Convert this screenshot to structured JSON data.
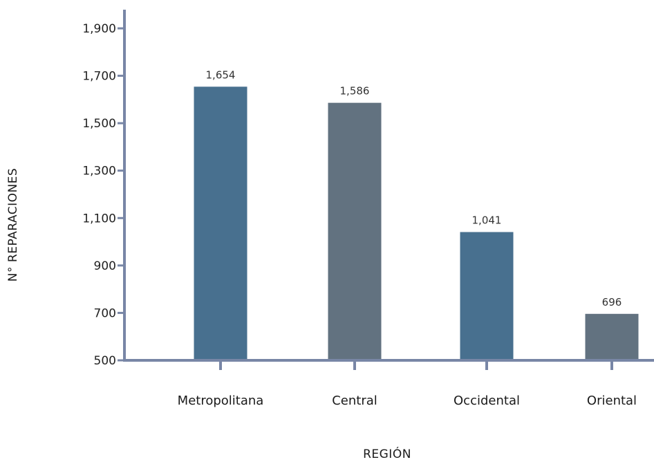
{
  "chart_data": {
    "type": "bar",
    "categories": [
      "Metropolitana",
      "Central",
      "Occidental",
      "Oriental"
    ],
    "values": [
      1654,
      1586,
      1041,
      696
    ],
    "data_labels": [
      "1,654",
      "1,586",
      "1,041",
      "696"
    ],
    "xlabel": "REGIÓN",
    "ylabel": "N° REPARACIONES",
    "ylim": [
      500,
      1900
    ],
    "yticks": [
      500,
      700,
      900,
      1100,
      1300,
      1500,
      1700,
      1900
    ],
    "ytick_labels": [
      "500",
      "700",
      "900",
      "1,100",
      "1,300",
      "1,500",
      "1,700",
      "1,900"
    ],
    "grid": false,
    "legend": "none",
    "colors": [
      "#48708f",
      "#627280",
      "#48708f",
      "#627280"
    ],
    "axis_color": "#7886a6"
  }
}
